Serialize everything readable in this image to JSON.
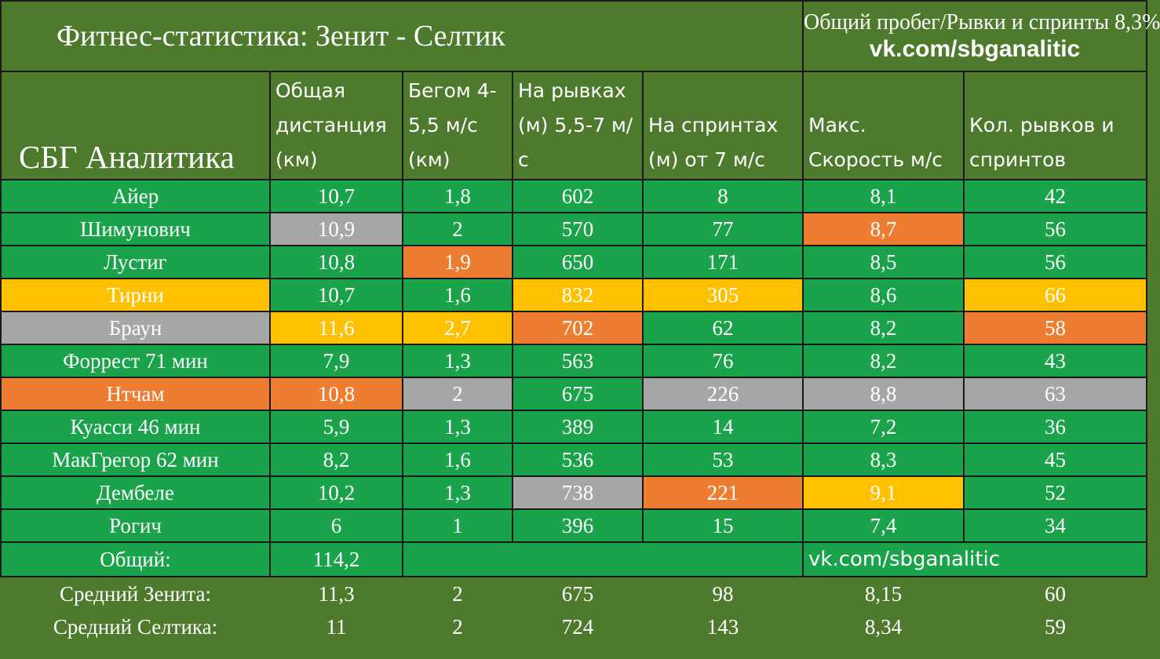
{
  "title": "Фитнес-статистика: Зенит - Селтик",
  "subtitle": "Общий пробег/Рывки и спринты 8,3%",
  "link": "vk.com/sbganalitic",
  "brand": "СБГ Аналитика",
  "columns": [
    "Общая дистанция (км)",
    "Бегом 4-5,5 м/с (км)",
    "На рывках (м) 5,5-7 м/с",
    "На спринтах (м) от 7 м/с",
    "Макс. Скорость м/с",
    "Кол. рывков и спринтов"
  ],
  "colors": {
    "green": "#1aa34a",
    "gray": "#a6a6a6",
    "orange": "#ed7d31",
    "yellow": "#ffc000",
    "background": "#4e7a2e"
  },
  "rows": [
    {
      "name": "Айер",
      "name_color": "green",
      "cells": [
        {
          "v": "10,7",
          "c": "green"
        },
        {
          "v": "1,8",
          "c": "green"
        },
        {
          "v": "602",
          "c": "green"
        },
        {
          "v": "8",
          "c": "green"
        },
        {
          "v": "8,1",
          "c": "green"
        },
        {
          "v": "42",
          "c": "green"
        }
      ]
    },
    {
      "name": "Шимунович",
      "name_color": "green",
      "cells": [
        {
          "v": "10,9",
          "c": "gray"
        },
        {
          "v": "2",
          "c": "green"
        },
        {
          "v": "570",
          "c": "green"
        },
        {
          "v": "77",
          "c": "green"
        },
        {
          "v": "8,7",
          "c": "orange"
        },
        {
          "v": "56",
          "c": "green"
        }
      ]
    },
    {
      "name": "Лустиг",
      "name_color": "green",
      "cells": [
        {
          "v": "10,8",
          "c": "green"
        },
        {
          "v": "1,9",
          "c": "orange"
        },
        {
          "v": "650",
          "c": "green"
        },
        {
          "v": "171",
          "c": "green"
        },
        {
          "v": "8,5",
          "c": "green"
        },
        {
          "v": "56",
          "c": "green"
        }
      ]
    },
    {
      "name": "Тирни",
      "name_color": "yellow",
      "cells": [
        {
          "v": "10,7",
          "c": "green"
        },
        {
          "v": "1,6",
          "c": "green"
        },
        {
          "v": "832",
          "c": "yellow"
        },
        {
          "v": "305",
          "c": "yellow"
        },
        {
          "v": "8,6",
          "c": "green"
        },
        {
          "v": "66",
          "c": "yellow"
        }
      ]
    },
    {
      "name": "Браун",
      "name_color": "gray",
      "cells": [
        {
          "v": "11,6",
          "c": "yellow"
        },
        {
          "v": "2,7",
          "c": "yellow"
        },
        {
          "v": "702",
          "c": "orange"
        },
        {
          "v": "62",
          "c": "green"
        },
        {
          "v": "8,2",
          "c": "green"
        },
        {
          "v": "58",
          "c": "orange"
        }
      ]
    },
    {
      "name": "Форрест 71 мин",
      "name_color": "green",
      "cells": [
        {
          "v": "7,9",
          "c": "green"
        },
        {
          "v": "1,3",
          "c": "green"
        },
        {
          "v": "563",
          "c": "green"
        },
        {
          "v": "76",
          "c": "green"
        },
        {
          "v": "8,2",
          "c": "green"
        },
        {
          "v": "43",
          "c": "green"
        }
      ]
    },
    {
      "name": "Нтчам",
      "name_color": "orange",
      "cells": [
        {
          "v": "10,8",
          "c": "orange"
        },
        {
          "v": "2",
          "c": "gray"
        },
        {
          "v": "675",
          "c": "green"
        },
        {
          "v": "226",
          "c": "gray"
        },
        {
          "v": "8,8",
          "c": "gray"
        },
        {
          "v": "63",
          "c": "gray"
        }
      ]
    },
    {
      "name": "Куасси 46 мин",
      "name_color": "green",
      "cells": [
        {
          "v": "5,9",
          "c": "green"
        },
        {
          "v": "1,3",
          "c": "green"
        },
        {
          "v": "389",
          "c": "green"
        },
        {
          "v": "14",
          "c": "green"
        },
        {
          "v": "7,2",
          "c": "green"
        },
        {
          "v": "36",
          "c": "green"
        }
      ]
    },
    {
      "name": "МакГрегор 62 мин",
      "name_color": "green",
      "cells": [
        {
          "v": "8,2",
          "c": "green"
        },
        {
          "v": "1,6",
          "c": "green"
        },
        {
          "v": "536",
          "c": "green"
        },
        {
          "v": "53",
          "c": "green"
        },
        {
          "v": "8,3",
          "c": "green"
        },
        {
          "v": "45",
          "c": "green"
        }
      ]
    },
    {
      "name": "Дембеле",
      "name_color": "green",
      "cells": [
        {
          "v": "10,2",
          "c": "green"
        },
        {
          "v": "1,3",
          "c": "green"
        },
        {
          "v": "738",
          "c": "gray"
        },
        {
          "v": "221",
          "c": "orange"
        },
        {
          "v": "9,1",
          "c": "yellow"
        },
        {
          "v": "52",
          "c": "green"
        }
      ]
    },
    {
      "name": "Рогич",
      "name_color": "green",
      "cells": [
        {
          "v": "6",
          "c": "green"
        },
        {
          "v": "1",
          "c": "green"
        },
        {
          "v": "396",
          "c": "green"
        },
        {
          "v": "15",
          "c": "green"
        },
        {
          "v": "7,4",
          "c": "green"
        },
        {
          "v": "34",
          "c": "green"
        }
      ]
    }
  ],
  "total": {
    "label": "Общий:",
    "value": "114,2",
    "link": "vk.com/sbganalitic"
  },
  "averages": [
    {
      "label": "Средний Зенита:",
      "values": [
        "11,3",
        "2",
        "675",
        "98",
        "8,15",
        "60"
      ]
    },
    {
      "label": "Средний Селтика:",
      "values": [
        "11",
        "2",
        "724",
        "143",
        "8,34",
        "59"
      ]
    }
  ]
}
